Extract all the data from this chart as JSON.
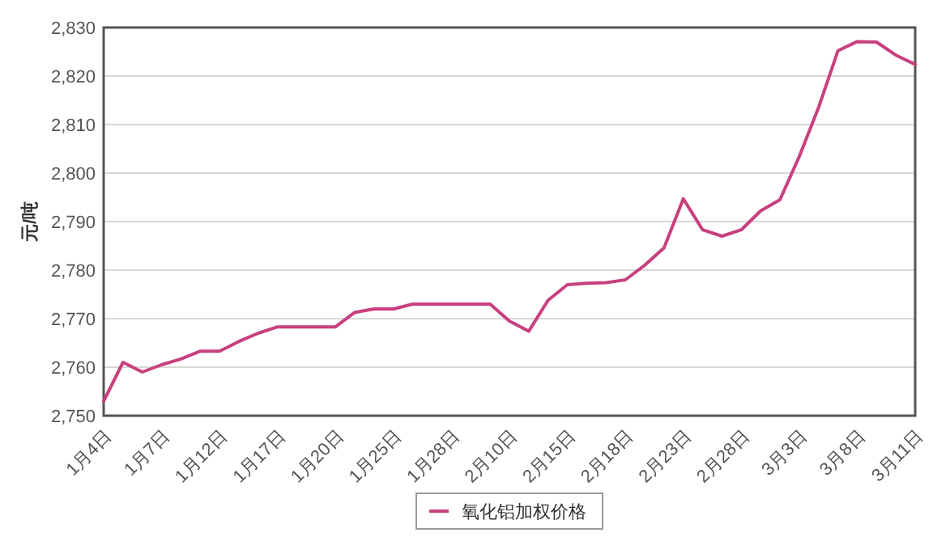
{
  "chart_data": {
    "type": "line",
    "ylabel": "元/吨",
    "categories": [
      "1月4日",
      null,
      null,
      "1月7日",
      null,
      null,
      "1月12日",
      null,
      null,
      "1月17日",
      null,
      null,
      "1月20日",
      null,
      null,
      "1月25日",
      null,
      null,
      "1月28日",
      null,
      null,
      "2月10日",
      null,
      null,
      "2月15日",
      null,
      null,
      "2月18日",
      null,
      null,
      "2月23日",
      null,
      null,
      "2月28日",
      null,
      null,
      "3月3日",
      null,
      null,
      "3月8日",
      null,
      null,
      "3月11日"
    ],
    "series": [
      {
        "name": "氧化铝加权价格",
        "color": "#c8407f",
        "values": [
          2753,
          2761,
          2759,
          2760.5,
          2761.7,
          2763.3,
          2763.3,
          2765.3,
          2767,
          2768.3,
          2768.3,
          2768.3,
          2768.3,
          2771.3,
          2772,
          2772,
          2773,
          2773,
          2773,
          2773,
          2773,
          2769.5,
          2767.4,
          2773.8,
          2777,
          2777.3,
          2777.4,
          2778,
          2781,
          2784.6,
          2794.7,
          2788.3,
          2787,
          2788.3,
          2792.2,
          2794.5,
          2803.4,
          2813.5,
          2825.2,
          2827.1,
          2827,
          2824.3,
          2822.4
        ]
      }
    ],
    "ylim": [
      2750,
      2830
    ],
    "yticks": [
      {
        "value": 2750,
        "label": "2,750"
      },
      {
        "value": 2760,
        "label": "2,760"
      },
      {
        "value": 2770,
        "label": "2,770"
      },
      {
        "value": 2780,
        "label": "2,780"
      },
      {
        "value": 2790,
        "label": "2,790"
      },
      {
        "value": 2800,
        "label": "2,800"
      },
      {
        "value": 2810,
        "label": "2,810"
      },
      {
        "value": 2820,
        "label": "2,820"
      },
      {
        "value": 2830,
        "label": "2,830"
      }
    ],
    "grid": "y",
    "legend": "bottom"
  }
}
